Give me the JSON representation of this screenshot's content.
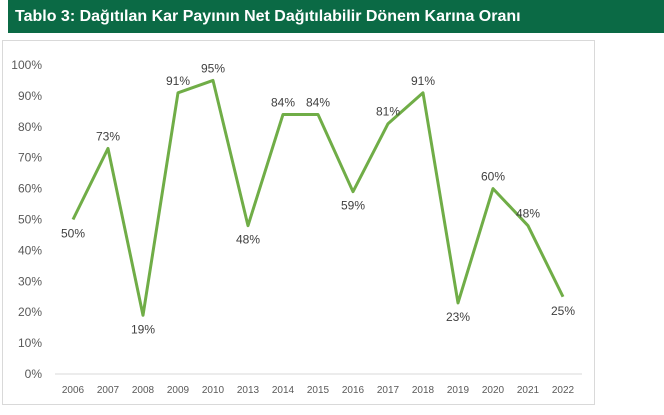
{
  "chart_data": {
    "type": "line",
    "title": "Tablo 3: Dağıtılan Kar Payının Net Dağıtılabilir Dönem Karına Oranı",
    "categories": [
      "2006",
      "2007",
      "2008",
      "2009",
      "2010",
      "2013",
      "2014",
      "2015",
      "2016",
      "2017",
      "2018",
      "2019",
      "2020",
      "2021",
      "2022"
    ],
    "values": [
      50,
      73,
      19,
      91,
      95,
      48,
      84,
      84,
      59,
      81,
      91,
      23,
      60,
      48,
      25
    ],
    "data_labels": [
      "50%",
      "73%",
      "19%",
      "91%",
      "95%",
      "48%",
      "84%",
      "84%",
      "59%",
      "81%",
      "91%",
      "23%",
      "60%",
      "48%",
      "25%"
    ],
    "yticks": [
      "0%",
      "10%",
      "20%",
      "30%",
      "40%",
      "50%",
      "60%",
      "70%",
      "80%",
      "90%",
      "100%"
    ],
    "ylim": [
      0,
      100
    ],
    "grid": false,
    "line_color": "#70ad47",
    "title_bg": "#0b6a45"
  }
}
